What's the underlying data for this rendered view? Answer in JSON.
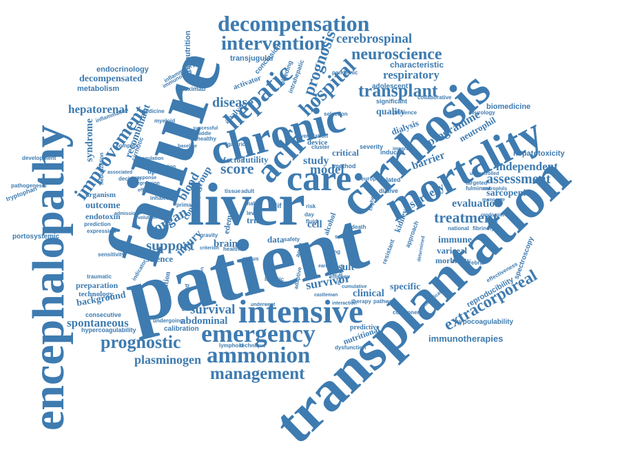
{
  "cloud": {
    "color": "#3e7bb0",
    "background": "#ffffff",
    "words": {
      "patient": "patient",
      "failure": "failure",
      "liver": "liver",
      "transplantation": "transplantation",
      "encephalopathy": "encephalopathy",
      "cirrhosis": "cirrhosis",
      "chronic": "chronic",
      "mortality": "mortality",
      "intensive": "intensive",
      "emergency": "emergency",
      "ammonion": "ammonion",
      "management": "management",
      "decompensation": "decompensation",
      "intervention": "intervention",
      "acute": "aclf",
      "care": "care",
      "hepatic": "hepatic",
      "improvement": "improvement",
      "hospital": "hospital",
      "prognosis": "prognosis",
      "transplant": "transplant",
      "neuroscience": "neuroscience",
      "cerebrospinal": "cerebrospinal",
      "respiratory": "respiratory",
      "characteristic": "characteristic",
      "treatment": "treatment",
      "assessment": "assessment",
      "independent": "independent",
      "extracorporeal": "extracorporeal",
      "immunotherapies": "immunotherapies",
      "prognostic": "prognostic",
      "plasminogen": "plasminogen",
      "survival": "survival",
      "survivor": "survivor",
      "spontaneous": "spontaneous",
      "outcome": "outcome",
      "support": "support",
      "organ": "organ",
      "score": "score",
      "model": "model",
      "disease": "disease",
      "hepatorenal": "hepatorenal",
      "decompensated": "decompensated",
      "endocrinology": "endocrinology",
      "metabolism": "metabolism",
      "syndrome": "syndrome",
      "recombinant": "recombinant",
      "malnutrition": "malnutrition",
      "transjugular": "transjugular",
      "clinical": "clinical",
      "specific": "specific",
      "result": "result",
      "evaluation": "evaluation",
      "immune": "immune",
      "variceal": "variceal",
      "morbidity": "morbidity",
      "sarcopenia": "sarcopenia",
      "programme": "programme",
      "barrier": "barrier",
      "surgery": "surgery",
      "neutrophil": "neutrophil",
      "hepatotoxicity": "hepatotoxicity",
      "biomedicine": "biomedicine",
      "hypocoagulability": "hypocoagulability",
      "hypercoagulability": "hypercoagulability",
      "reproducibility": "reproducibility",
      "spectroscopy": "spectroscopy",
      "abdominal": "abdominal",
      "background": "background",
      "preparation": "preparation",
      "technology": "technology",
      "science": "science",
      "injury": "injury",
      "brain": "brain",
      "blood": "blood",
      "control": "control",
      "group": "group",
      "study": "study",
      "quality": "quality",
      "dialysis": "dialysis",
      "critical": "critical",
      "futility": "futility",
      "factor": "factor",
      "analysis": "analysis",
      "cell": "cell",
      "data": "data",
      "trial": "trial",
      "edema": "edema",
      "nutritional": "nutritional",
      "predictive": "predictive",
      "dysfunction": "dysfunction",
      "lymphoid": "lymphoid",
      "technique": "technique",
      "medication": "medication",
      "calibration": "calibration",
      "undergoing": "undergoing",
      "consecutive": "consecutive",
      "endotoxin": "endotoxin",
      "portosystemic": "portosystemic",
      "tryptophan": "tryptophan",
      "pathogenesis": "pathogenesis",
      "development": "development",
      "organism": "organism",
      "update": "update",
      "complex": "complex",
      "prediction": "prediction",
      "expression": "expression",
      "sensitivity": "sensitivity",
      "traumatic": "traumatic",
      "rituximab": "rituximab",
      "activator": "activator",
      "conclusion": "conclusion",
      "intrahepatic": "intrahepatic",
      "bleeding": "bleeding",
      "adolescent": "adolescent",
      "significant": "significant",
      "pandemic": "pandemic",
      "device": "device",
      "alcohol": "alcohol",
      "kidney": "kidney",
      "related": "related",
      "induced": "induced",
      "dialive": "dialive",
      "targeted": "targeted",
      "fulminant": "fulminant",
      "national": "national",
      "fibrinolytic": "fibrinolytic",
      "cerebral": "cerebral",
      "effectiveness": "effectiveness",
      "neurology": "neurology",
      "collaborative": "collaborative",
      "approach": "approach",
      "resistant": "resistant",
      "severity": "severity",
      "method": "method",
      "severe": "severe",
      "safety": "safety",
      "health": "health",
      "status": "status",
      "epoch": "epoch",
      "death": "death",
      "aged": "aged",
      "logistic": "logistic",
      "tissue": "tissue",
      "adult": "adult",
      "gastric": "gastric",
      "medicine": "medicine",
      "myeloid": "myeloid",
      "healthy": "healthy",
      "inflammation": "inflammation",
      "gravity": "gravity",
      "primary": "primary",
      "decision": "decision",
      "inhaled": "inhaled",
      "selection": "selection",
      "cluster": "cluster",
      "europe": "europe",
      "risk": "risk",
      "day": "day",
      "fluid": "fluid",
      "clif": "clif",
      "level": "level",
      "male": "male",
      "young": "young",
      "higher": "higher",
      "component": "component",
      "therapy": "therapy",
      "pathway": "pathway",
      "efficacy": "efficacy",
      "multiple": "multiple",
      "adaptive": "adaptive",
      "cirrhotic": "cirrhotic",
      "nebulization": "nebulization",
      "immunology": "immunology",
      "inflammatory": "inflammatory",
      "ventilation": "ventilation",
      "presence": "presence",
      "important": "important",
      "monocyte": "monocyte",
      "neutrophils": "neutrophils",
      "randomized": "randomized",
      "uncontrolled": "uncontrolled",
      "coagulation": "coagulation",
      "infection": "infection",
      "response": "response",
      "regression": "regression",
      "effective": "effective",
      "associated": "associated",
      "admission": "admission",
      "evolution": "evolution",
      "criterion": "criterion",
      "validation": "validation",
      "observed": "observed",
      "underwent": "underwent",
      "determined": "determined",
      "identification": "identification",
      "cumulative": "cumulative",
      "castleman": "castleman",
      "interaction": "interaction",
      "successful": "successful",
      "baseline": "baseline",
      "middle": "middle",
      "indicator": "indicator",
      "early": "early"
    }
  }
}
